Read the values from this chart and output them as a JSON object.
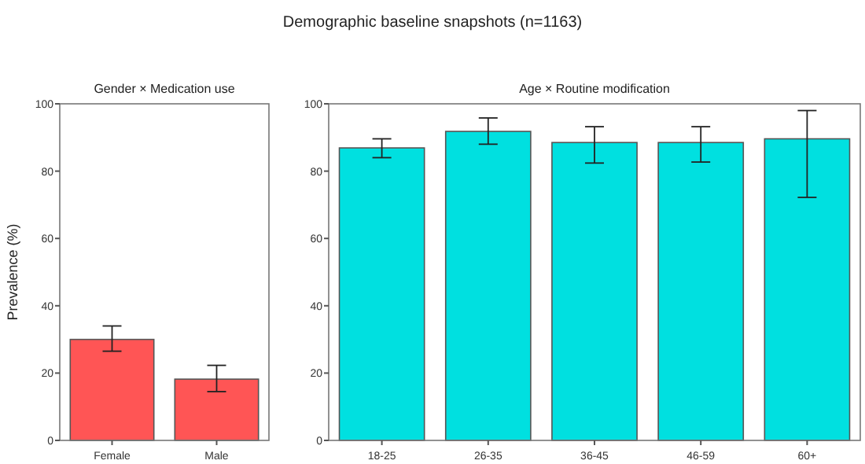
{
  "chart_data": [
    {
      "type": "bar",
      "title": "Gender × Medication use",
      "ylabel": "Prevalence (%)",
      "categories": [
        "Female",
        "Male"
      ],
      "values": [
        30,
        18.2
      ],
      "errors": [
        [
          26.5,
          34
        ],
        [
          14.5,
          22.3
        ]
      ],
      "color": "#ff5555",
      "ylim": [
        0,
        100
      ],
      "yticks": [
        0,
        20,
        40,
        60,
        80,
        100
      ],
      "grid": false,
      "annotations": [
        "Demographic baseline snapshots (n=1163)"
      ]
    },
    {
      "type": "bar",
      "title": "Age × Routine modification",
      "categories": [
        "18-25",
        "26-35",
        "36-45",
        "46-59",
        "60+"
      ],
      "values": [
        86.9,
        91.8,
        88.5,
        88.5,
        89.6
      ],
      "errors": [
        [
          84,
          89.6
        ],
        [
          88,
          95.8
        ],
        [
          82.4,
          93.2
        ],
        [
          82.7,
          93.2
        ],
        [
          72.2,
          98
        ]
      ],
      "color": "#00e0e0",
      "ylim": [
        0,
        100
      ],
      "yticks": [
        0,
        20,
        40,
        60,
        80,
        100
      ],
      "grid": false
    }
  ]
}
